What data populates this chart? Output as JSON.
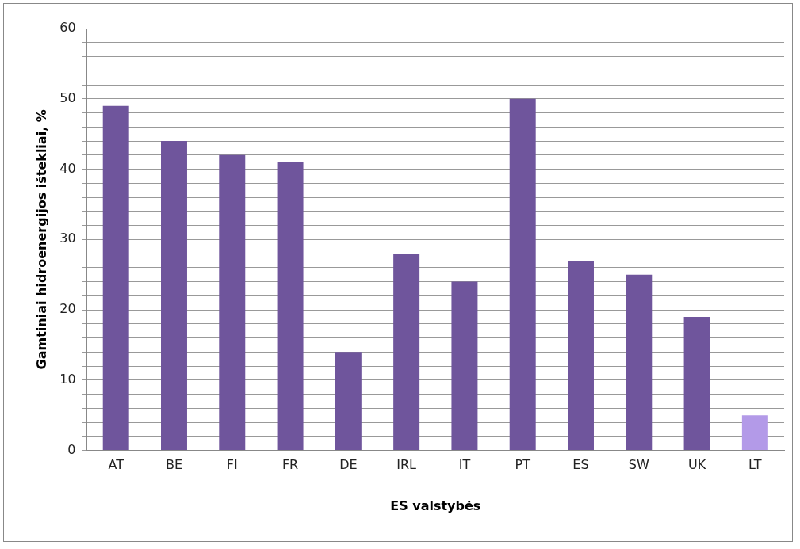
{
  "chart_data": {
    "type": "bar",
    "xlabel": "ES valstybės",
    "ylabel": "Gamtiniai hidroenergijos ištekliai, %",
    "categories": [
      "AT",
      "BE",
      "FI",
      "FR",
      "DE",
      "IRL",
      "IT",
      "PT",
      "ES",
      "SW",
      "UK",
      "LT"
    ],
    "values": [
      49,
      44,
      42,
      41,
      14,
      28,
      24,
      50,
      27,
      25,
      19,
      5
    ],
    "colors": [
      "#6f559c",
      "#6f559c",
      "#6f559c",
      "#6f559c",
      "#6f559c",
      "#6f559c",
      "#6f559c",
      "#6f559c",
      "#6f559c",
      "#6f559c",
      "#6f559c",
      "#b39ae8"
    ],
    "ylim": [
      0,
      60
    ],
    "yticks": [
      0,
      {
        "value": 2,
        "label": null
      },
      {
        "value": 4,
        "label": null
      },
      {
        "value": 6,
        "label": null
      },
      {
        "value": 8,
        "label": null
      },
      10,
      {
        "value": 12,
        "label": null
      },
      {
        "value": 14,
        "label": null
      },
      {
        "value": 16,
        "label": null
      },
      {
        "value": 18,
        "label": null
      },
      20,
      {
        "value": 22,
        "label": null
      },
      {
        "value": 24,
        "label": null
      },
      {
        "value": 26,
        "label": null
      },
      {
        "value": 28,
        "label": null
      },
      30,
      {
        "value": 32,
        "label": null
      },
      {
        "value": 34,
        "label": null
      },
      {
        "value": 36,
        "label": null
      },
      {
        "value": 38,
        "label": null
      },
      40,
      {
        "value": 42,
        "label": null
      },
      {
        "value": 44,
        "label": null
      },
      {
        "value": 46,
        "label": null
      },
      {
        "value": 48,
        "label": null
      },
      50,
      {
        "value": 52,
        "label": null
      },
      {
        "value": 54,
        "label": null
      },
      {
        "value": 56,
        "label": null
      },
      {
        "value": 58,
        "label": null
      },
      60
    ],
    "grid": "y",
    "legend": false
  }
}
